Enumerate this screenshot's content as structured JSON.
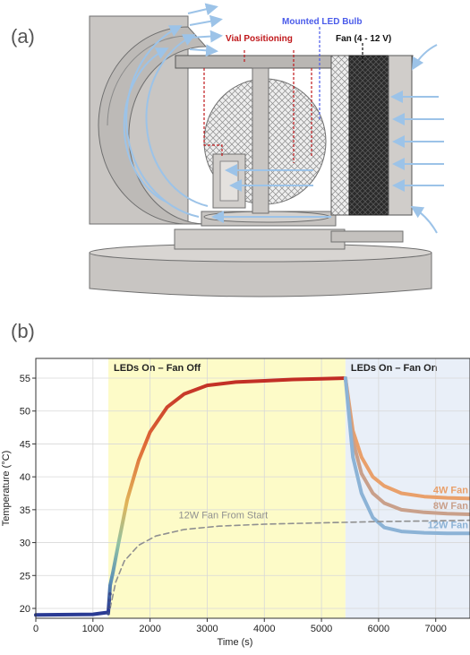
{
  "panel_a": {
    "label": "(a)",
    "annotations": {
      "vial": "Vial Positioning",
      "bulb": "Mounted LED Bulb",
      "fan": "Fan (4 - 12 V)"
    },
    "colors": {
      "vial": "#c0181b",
      "bulb": "#4a5bea",
      "fan": "#111111",
      "airflow": "#9cc3e8",
      "body": "#c9c6c3"
    }
  },
  "panel_b": {
    "label": "(b)",
    "region_labels": {
      "fan_off": "LEDs On – Fan Off",
      "fan_on": "LEDs On – Fan On"
    },
    "region_colors": {
      "fan_off": "#fdfbc8",
      "fan_on": "#e9eff8"
    }
  },
  "chart_data": {
    "type": "line",
    "title": "",
    "xlabel": "Time (s)",
    "ylabel": "Temperature (°C)",
    "xlim": [
      0,
      7600
    ],
    "ylim": [
      18.5,
      58
    ],
    "xticks": [
      0,
      1000,
      2000,
      3000,
      4000,
      5000,
      6000,
      7000
    ],
    "yticks": [
      20,
      25,
      30,
      35,
      40,
      45,
      50,
      55
    ],
    "grid": true,
    "regions": [
      {
        "label": "LEDs On – Fan Off",
        "x": [
          1270,
          5420
        ]
      },
      {
        "label": "LEDs On – Fan On",
        "x": [
          5420,
          7600
        ]
      }
    ],
    "series": [
      {
        "name": "",
        "style": "gradient-solid",
        "x": [
          0,
          1000,
          1270,
          1300,
          1350,
          1450,
          1600,
          1800,
          2000,
          2300,
          2600,
          3000,
          3500,
          4000,
          4500,
          5000,
          5420
        ],
        "y": [
          19,
          19.1,
          19.4,
          23.5,
          25.5,
          30,
          36.5,
          42.5,
          46.8,
          50.6,
          52.6,
          53.9,
          54.4,
          54.6,
          54.8,
          54.9,
          55
        ]
      },
      {
        "name": "4W Fan",
        "color": "#e9a06b",
        "x": [
          5420,
          5550,
          5700,
          5900,
          6100,
          6400,
          6800,
          7200,
          7600
        ],
        "y": [
          55,
          47,
          43,
          40,
          38.6,
          37.5,
          37,
          36.8,
          36.7
        ]
      },
      {
        "name": "8W Fan",
        "color": "#c9a08b",
        "x": [
          5420,
          5550,
          5700,
          5900,
          6100,
          6400,
          6800,
          7200,
          7600
        ],
        "y": [
          55,
          45.5,
          40.5,
          37.5,
          36,
          35,
          34.6,
          34.4,
          34.3
        ]
      },
      {
        "name": "12W Fan",
        "color": "#8cb3d6",
        "x": [
          5420,
          5550,
          5700,
          5900,
          6100,
          6400,
          6800,
          7200,
          7600
        ],
        "y": [
          55,
          43,
          37.5,
          33.8,
          32.3,
          31.7,
          31.5,
          31.4,
          31.4
        ]
      },
      {
        "name": "12W Fan From Start",
        "color": "#909090",
        "dash": true,
        "x": [
          1300,
          1400,
          1550,
          1800,
          2100,
          2600,
          3200,
          4000,
          5000,
          6000,
          7000,
          7600
        ],
        "y": [
          20,
          24,
          27.2,
          29.6,
          31,
          32,
          32.5,
          32.8,
          33,
          33.2,
          33.3,
          33.4
        ]
      }
    ]
  }
}
